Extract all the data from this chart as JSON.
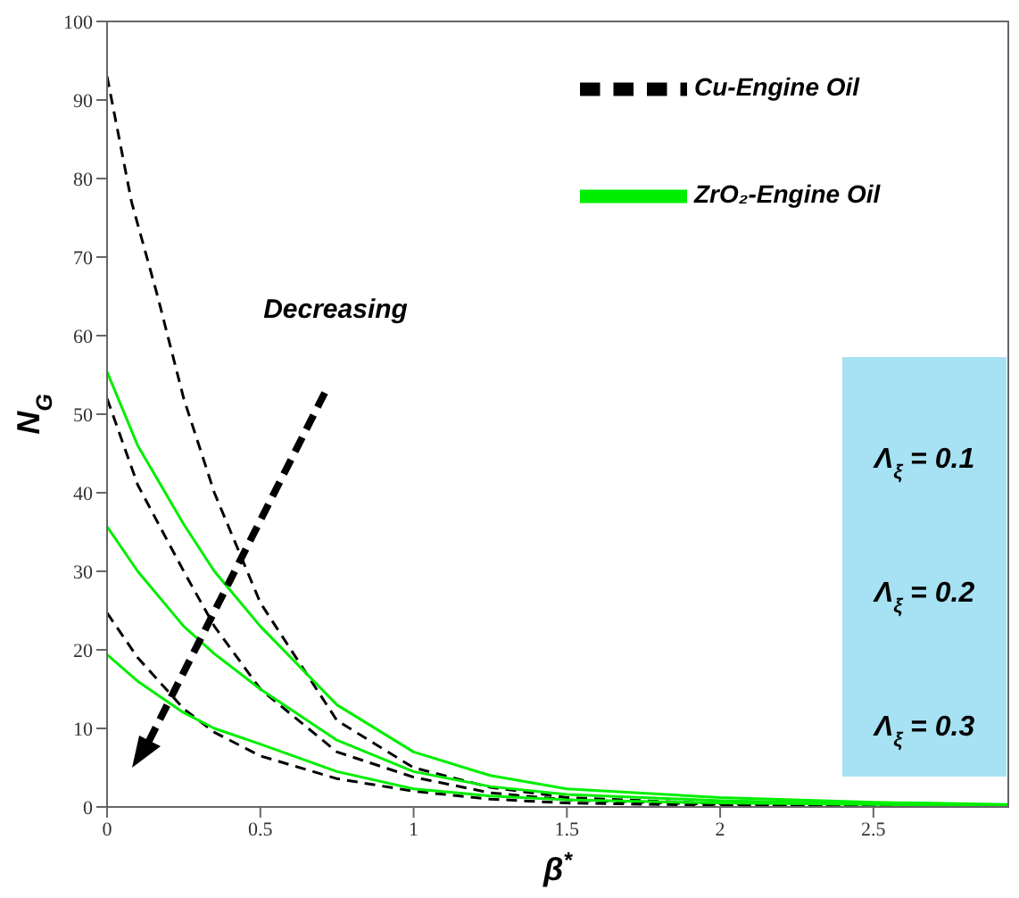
{
  "chart_data": {
    "type": "line",
    "xlabel": "β$^{*}$",
    "ylabel": "N$_{G}$",
    "xlim": [
      0,
      2.94
    ],
    "ylim": [
      0,
      100
    ],
    "xticks": [
      0,
      0.5,
      1,
      1.5,
      2,
      2.5
    ],
    "yticks": [
      0,
      10,
      20,
      30,
      40,
      50,
      60,
      70,
      80,
      90,
      100
    ],
    "legend": "top right",
    "marker": "none",
    "series": [
      {
        "name": "Cu-Engine Oil",
        "color": "#000000",
        "line_style": "dashed",
        "x": [
          0,
          0.08,
          0.165,
          0.25,
          0.35,
          0.5,
          0.75,
          1,
          1.25,
          1.5,
          2,
          2.5,
          2.94
        ],
        "values": [
          93,
          77,
          65,
          52,
          40,
          26,
          11,
          5,
          2.5,
          1.2,
          0.4,
          0.1,
          0
        ]
      },
      {
        "name": "ZrO₂-Engine Oil",
        "color": "#00ee00",
        "line_style": "solid",
        "x": [
          0,
          0.1,
          0.25,
          0.35,
          0.5,
          0.75,
          1,
          1.25,
          1.5,
          2,
          2.5,
          2.94
        ],
        "values": [
          55.4,
          46,
          36,
          30,
          23,
          13,
          7,
          4,
          2.3,
          1.2,
          0.6,
          0.3
        ]
      },
      {
        "color": "#000000",
        "line_style": "dashed",
        "x": [
          0,
          0.1,
          0.25,
          0.35,
          0.5,
          0.75,
          1,
          1.25,
          1.5,
          2,
          2.5,
          2.94
        ],
        "values": [
          52,
          41,
          30,
          23,
          15,
          7,
          3.8,
          1.8,
          0.9,
          0.3,
          0.1,
          0
        ]
      },
      {
        "color": "#00ee00",
        "line_style": "solid",
        "x": [
          0,
          0.1,
          0.25,
          0.35,
          0.5,
          0.75,
          1,
          1.25,
          1.5,
          2,
          2.5,
          2.94
        ],
        "values": [
          35.7,
          30,
          23,
          19.5,
          15,
          8.5,
          4.5,
          2.6,
          1.6,
          0.8,
          0.4,
          0.2
        ]
      },
      {
        "color": "#000000",
        "line_style": "dashed",
        "x": [
          0,
          0.1,
          0.25,
          0.35,
          0.5,
          0.75,
          1,
          1.25,
          1.5,
          2,
          2.5,
          2.94
        ],
        "values": [
          24.7,
          19,
          12.5,
          9.5,
          6.5,
          3.6,
          2,
          1,
          0.5,
          0.2,
          0.1,
          0
        ]
      },
      {
        "color": "#00ee00",
        "line_style": "solid",
        "x": [
          0,
          0.1,
          0.25,
          0.35,
          0.5,
          0.75,
          1,
          1.25,
          1.5,
          2,
          2.5,
          2.94
        ],
        "values": [
          19.4,
          16,
          12,
          10,
          8,
          4.5,
          2.3,
          1.4,
          0.9,
          0.5,
          0.3,
          0.2
        ]
      }
    ],
    "annotations": [
      "Decreasing",
      "Λ$_{ξ}$ = 0.1",
      "Λ$_{ξ}$ = 0.2",
      "Λ$_{ξ}$ = 0.3"
    ]
  }
}
